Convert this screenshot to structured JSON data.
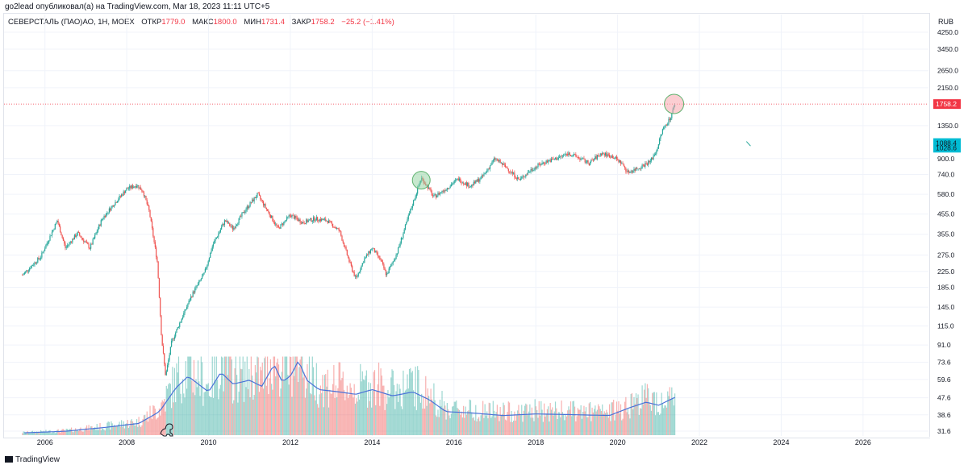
{
  "header": {
    "published": "go2lead опубликовал(а) на TradingView.com, Mar 18, 2023 11:11 UTC+5",
    "symbol": "СЕВЕРСТАЛЬ (ПАО)АО, 1Н, MOEX",
    "open_label": "ОТКР",
    "open_value": "1779.0",
    "high_label": "МАКС",
    "high_value": "1800.0",
    "low_label": "МИН",
    "low_value": "1731.4",
    "close_label": "ЗАКР",
    "close_value": "1758.2",
    "change": "−25.2 (−1.41%)"
  },
  "footer": {
    "brand": "TradingView"
  },
  "colors": {
    "up": "#26a69a",
    "down": "#ef5350",
    "volume_ma": "#4a72d8",
    "current_price": "#f23645",
    "marker_current": "#f7a6ad",
    "marker_prev": "#8fd19e",
    "cyan_badge": "#00bcd4"
  },
  "chart_data": {
    "type": "candlestick",
    "scale": "log",
    "currency": "RUB",
    "x_ticks": [
      "2006",
      "2008",
      "2010",
      "2012",
      "2014",
      "2016",
      "2018",
      "2020",
      "2022",
      "2024",
      "2026"
    ],
    "x_range": [
      2005.0,
      2027.6
    ],
    "y_ticks": [
      "4250.0",
      "3450.0",
      "2650.0",
      "2150.0",
      "1350.0",
      "900.0",
      "740.0",
      "580.0",
      "455.0",
      "355.0",
      "275.0",
      "225.0",
      "185.0",
      "145.0",
      "115.0",
      "91.0",
      "73.6",
      "59.6",
      "47.6",
      "38.6",
      "31.6"
    ],
    "current_price": {
      "value": 1758.2,
      "label": "1758.2"
    },
    "price_badges": [
      {
        "value": 1088.4,
        "label": "1088.4"
      },
      {
        "value": 1028.6,
        "label": "1028.6"
      }
    ],
    "price_path": [
      [
        2005.45,
        215
      ],
      [
        2005.9,
        270
      ],
      [
        2006.3,
        420
      ],
      [
        2006.5,
        300
      ],
      [
        2006.8,
        360
      ],
      [
        2007.1,
        300
      ],
      [
        2007.4,
        430
      ],
      [
        2007.7,
        520
      ],
      [
        2008.0,
        620
      ],
      [
        2008.25,
        650
      ],
      [
        2008.4,
        600
      ],
      [
        2008.55,
        470
      ],
      [
        2008.75,
        250
      ],
      [
        2008.85,
        100
      ],
      [
        2008.95,
        62
      ],
      [
        2009.1,
        95
      ],
      [
        2009.3,
        120
      ],
      [
        2009.6,
        170
      ],
      [
        2009.9,
        220
      ],
      [
        2010.1,
        310
      ],
      [
        2010.4,
        420
      ],
      [
        2010.6,
        380
      ],
      [
        2010.9,
        480
      ],
      [
        2011.2,
        580
      ],
      [
        2011.45,
        470
      ],
      [
        2011.7,
        380
      ],
      [
        2012.0,
        450
      ],
      [
        2012.3,
        410
      ],
      [
        2012.6,
        430
      ],
      [
        2012.9,
        420
      ],
      [
        2013.2,
        370
      ],
      [
        2013.45,
        250
      ],
      [
        2013.6,
        205
      ],
      [
        2013.8,
        260
      ],
      [
        2014.0,
        300
      ],
      [
        2014.2,
        260
      ],
      [
        2014.35,
        215
      ],
      [
        2014.6,
        280
      ],
      [
        2014.9,
        450
      ],
      [
        2015.2,
        710
      ],
      [
        2015.35,
        640
      ],
      [
        2015.5,
        560
      ],
      [
        2015.8,
        620
      ],
      [
        2016.1,
        700
      ],
      [
        2016.4,
        640
      ],
      [
        2016.7,
        720
      ],
      [
        2017.0,
        900
      ],
      [
        2017.3,
        800
      ],
      [
        2017.6,
        690
      ],
      [
        2017.9,
        790
      ],
      [
        2018.2,
        860
      ],
      [
        2018.5,
        900
      ],
      [
        2018.8,
        960
      ],
      [
        2019.0,
        920
      ],
      [
        2019.3,
        850
      ],
      [
        2019.6,
        960
      ],
      [
        2019.9,
        920
      ],
      [
        2020.1,
        850
      ],
      [
        2020.25,
        760
      ],
      [
        2020.5,
        800
      ],
      [
        2020.8,
        870
      ],
      [
        2020.95,
        990
      ],
      [
        2021.1,
        1280
      ],
      [
        2021.3,
        1500
      ],
      [
        2021.4,
        1760
      ]
    ],
    "volume_ma_path": [
      [
        2005.5,
        0.03
      ],
      [
        2006.5,
        0.05
      ],
      [
        2007.5,
        0.1
      ],
      [
        2008.3,
        0.15
      ],
      [
        2008.8,
        0.3
      ],
      [
        2009.2,
        0.6
      ],
      [
        2009.5,
        0.75
      ],
      [
        2010.0,
        0.55
      ],
      [
        2010.3,
        0.8
      ],
      [
        2010.6,
        0.65
      ],
      [
        2011.0,
        0.7
      ],
      [
        2011.3,
        0.62
      ],
      [
        2011.6,
        0.9
      ],
      [
        2011.8,
        0.68
      ],
      [
        2012.0,
        0.75
      ],
      [
        2012.2,
        0.95
      ],
      [
        2012.4,
        0.7
      ],
      [
        2012.7,
        0.58
      ],
      [
        2013.2,
        0.55
      ],
      [
        2013.6,
        0.52
      ],
      [
        2014.0,
        0.58
      ],
      [
        2014.5,
        0.5
      ],
      [
        2015.0,
        0.55
      ],
      [
        2015.4,
        0.45
      ],
      [
        2015.8,
        0.3
      ],
      [
        2016.5,
        0.28
      ],
      [
        2017.2,
        0.25
      ],
      [
        2018.0,
        0.27
      ],
      [
        2019.0,
        0.26
      ],
      [
        2019.8,
        0.25
      ],
      [
        2020.3,
        0.35
      ],
      [
        2020.7,
        0.42
      ],
      [
        2021.0,
        0.38
      ],
      [
        2021.4,
        0.48
      ]
    ],
    "markers": [
      {
        "name": "2015-high",
        "x": 2015.2,
        "price": 690
      },
      {
        "name": "current-high",
        "x": 2021.38,
        "price": 1760
      }
    ],
    "projection_line": [
      [
        2023.15,
        1110
      ],
      [
        2023.25,
        1050
      ]
    ]
  }
}
